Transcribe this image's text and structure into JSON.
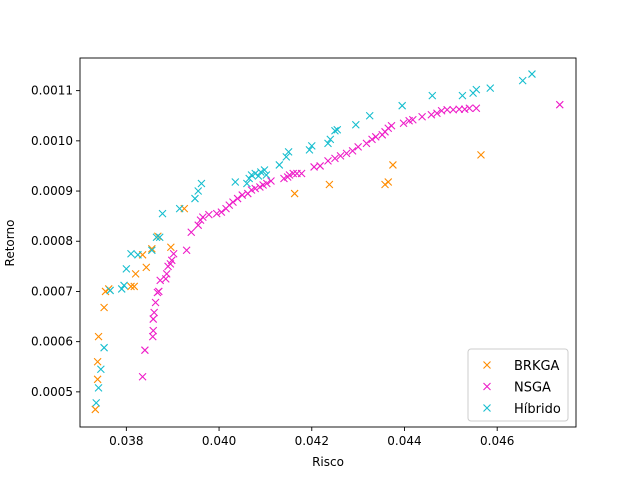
{
  "chart_data": {
    "type": "scatter",
    "title": "",
    "xlabel": "Risco",
    "ylabel": "Retorno",
    "xlim": [
      0.037,
      0.0477
    ],
    "ylim": [
      0.00043,
      0.001165
    ],
    "x_ticks": [
      0.038,
      0.04,
      0.042,
      0.044,
      0.046
    ],
    "x_tick_labels": [
      "0.038",
      "0.040",
      "0.042",
      "0.044",
      "0.046"
    ],
    "y_ticks": [
      0.0005,
      0.0006,
      0.0007,
      0.0008,
      0.0009,
      0.001,
      0.0011
    ],
    "y_tick_labels": [
      "0.0005",
      "0.0006",
      "0.0007",
      "0.0008",
      "0.0009",
      "0.0010",
      "0.0011"
    ],
    "grid": false,
    "legend_position": "lower right",
    "marker": "x",
    "series": [
      {
        "name": "BRKGA",
        "color": "#ff8c00",
        "points": [
          [
            0.03733,
            0.000465
          ],
          [
            0.03738,
            0.000525
          ],
          [
            0.03738,
            0.00056
          ],
          [
            0.0374,
            0.00061
          ],
          [
            0.03752,
            0.000668
          ],
          [
            0.03755,
            0.0007
          ],
          [
            0.03762,
            0.000705
          ],
          [
            0.0381,
            0.00071
          ],
          [
            0.03817,
            0.00071
          ],
          [
            0.0382,
            0.000735
          ],
          [
            0.03835,
            0.000773
          ],
          [
            0.03843,
            0.000748
          ],
          [
            0.03855,
            0.000785
          ],
          [
            0.03868,
            0.00081
          ],
          [
            0.03896,
            0.000788
          ],
          [
            0.03925,
            0.000865
          ],
          [
            0.04163,
            0.000895
          ],
          [
            0.04238,
            0.000913
          ],
          [
            0.04358,
            0.000913
          ],
          [
            0.04365,
            0.000918
          ],
          [
            0.04375,
            0.000952
          ],
          [
            0.04565,
            0.000972
          ]
        ]
      },
      {
        "name": "NSGA",
        "color": "#ee1cc8",
        "points": [
          [
            0.03835,
            0.00053
          ],
          [
            0.0384,
            0.000583
          ],
          [
            0.03857,
            0.00061
          ],
          [
            0.03858,
            0.000622
          ],
          [
            0.03858,
            0.000645
          ],
          [
            0.0386,
            0.000658
          ],
          [
            0.03863,
            0.000678
          ],
          [
            0.03867,
            0.000698
          ],
          [
            0.0387,
            0.0007
          ],
          [
            0.03873,
            0.000722
          ],
          [
            0.03885,
            0.000725
          ],
          [
            0.03887,
            0.000735
          ],
          [
            0.0389,
            0.00075
          ],
          [
            0.03895,
            0.000755
          ],
          [
            0.03898,
            0.000762
          ],
          [
            0.03902,
            0.000775
          ],
          [
            0.0393,
            0.000782
          ],
          [
            0.0394,
            0.000818
          ],
          [
            0.03955,
            0.000832
          ],
          [
            0.0396,
            0.000842
          ],
          [
            0.03965,
            0.000848
          ],
          [
            0.03978,
            0.000853
          ],
          [
            0.03995,
            0.000855
          ],
          [
            0.04005,
            0.000858
          ],
          [
            0.04015,
            0.000865
          ],
          [
            0.04022,
            0.000872
          ],
          [
            0.0403,
            0.000878
          ],
          [
            0.0404,
            0.000885
          ],
          [
            0.0405,
            0.000892
          ],
          [
            0.04062,
            0.000895
          ],
          [
            0.0407,
            0.000902
          ],
          [
            0.04078,
            0.000905
          ],
          [
            0.04088,
            0.000908
          ],
          [
            0.04095,
            0.000912
          ],
          [
            0.04103,
            0.000915
          ],
          [
            0.04112,
            0.00092
          ],
          [
            0.0414,
            0.000925
          ],
          [
            0.04148,
            0.000928
          ],
          [
            0.04152,
            0.000932
          ],
          [
            0.0416,
            0.000935
          ],
          [
            0.04168,
            0.000935
          ],
          [
            0.04178,
            0.000935
          ],
          [
            0.04205,
            0.000948
          ],
          [
            0.04218,
            0.00095
          ],
          [
            0.04235,
            0.00096
          ],
          [
            0.0425,
            0.000965
          ],
          [
            0.04262,
            0.00097
          ],
          [
            0.04275,
            0.000975
          ],
          [
            0.04288,
            0.00098
          ],
          [
            0.043,
            0.000988
          ],
          [
            0.04318,
            0.000995
          ],
          [
            0.0433,
            0.001003
          ],
          [
            0.04338,
            0.001008
          ],
          [
            0.04352,
            0.001012
          ],
          [
            0.04358,
            0.001018
          ],
          [
            0.04365,
            0.001025
          ],
          [
            0.04372,
            0.00103
          ],
          [
            0.04398,
            0.001035
          ],
          [
            0.0441,
            0.00104
          ],
          [
            0.04418,
            0.001042
          ],
          [
            0.04438,
            0.001048
          ],
          [
            0.04458,
            0.001052
          ],
          [
            0.0447,
            0.001055
          ],
          [
            0.0448,
            0.00106
          ],
          [
            0.04492,
            0.001062
          ],
          [
            0.04505,
            0.001062
          ],
          [
            0.04518,
            0.001063
          ],
          [
            0.0453,
            0.001063
          ],
          [
            0.0454,
            0.001065
          ],
          [
            0.04555,
            0.001065
          ],
          [
            0.04735,
            0.001072
          ]
        ]
      },
      {
        "name": "Híbrido",
        "color": "#17becf",
        "points": [
          [
            0.03735,
            0.000478
          ],
          [
            0.0374,
            0.000508
          ],
          [
            0.03745,
            0.000545
          ],
          [
            0.03752,
            0.000588
          ],
          [
            0.03765,
            0.000702
          ],
          [
            0.0379,
            0.000705
          ],
          [
            0.03795,
            0.000712
          ],
          [
            0.038,
            0.000745
          ],
          [
            0.0381,
            0.000775
          ],
          [
            0.03825,
            0.000773
          ],
          [
            0.03855,
            0.000782
          ],
          [
            0.03865,
            0.000808
          ],
          [
            0.03872,
            0.000808
          ],
          [
            0.03878,
            0.000855
          ],
          [
            0.03915,
            0.000865
          ],
          [
            0.03948,
            0.000885
          ],
          [
            0.03955,
            0.0009
          ],
          [
            0.03962,
            0.000915
          ],
          [
            0.04035,
            0.000918
          ],
          [
            0.0406,
            0.000915
          ],
          [
            0.04065,
            0.000925
          ],
          [
            0.0407,
            0.000932
          ],
          [
            0.04078,
            0.000935
          ],
          [
            0.04085,
            0.00093
          ],
          [
            0.0409,
            0.000938
          ],
          [
            0.04098,
            0.000942
          ],
          [
            0.04102,
            0.000932
          ],
          [
            0.0413,
            0.000952
          ],
          [
            0.04145,
            0.000968
          ],
          [
            0.0415,
            0.000978
          ],
          [
            0.04195,
            0.000982
          ],
          [
            0.042,
            0.00099
          ],
          [
            0.04235,
            0.000995
          ],
          [
            0.0424,
            0.001003
          ],
          [
            0.0425,
            0.00102
          ],
          [
            0.04255,
            0.001022
          ],
          [
            0.04295,
            0.001032
          ],
          [
            0.04325,
            0.00105
          ],
          [
            0.04395,
            0.00107
          ],
          [
            0.0446,
            0.00109
          ],
          [
            0.04525,
            0.00109
          ],
          [
            0.04548,
            0.001095
          ],
          [
            0.04555,
            0.001102
          ],
          [
            0.04585,
            0.001105
          ],
          [
            0.04655,
            0.00112
          ],
          [
            0.04675,
            0.001133
          ]
        ]
      }
    ]
  }
}
